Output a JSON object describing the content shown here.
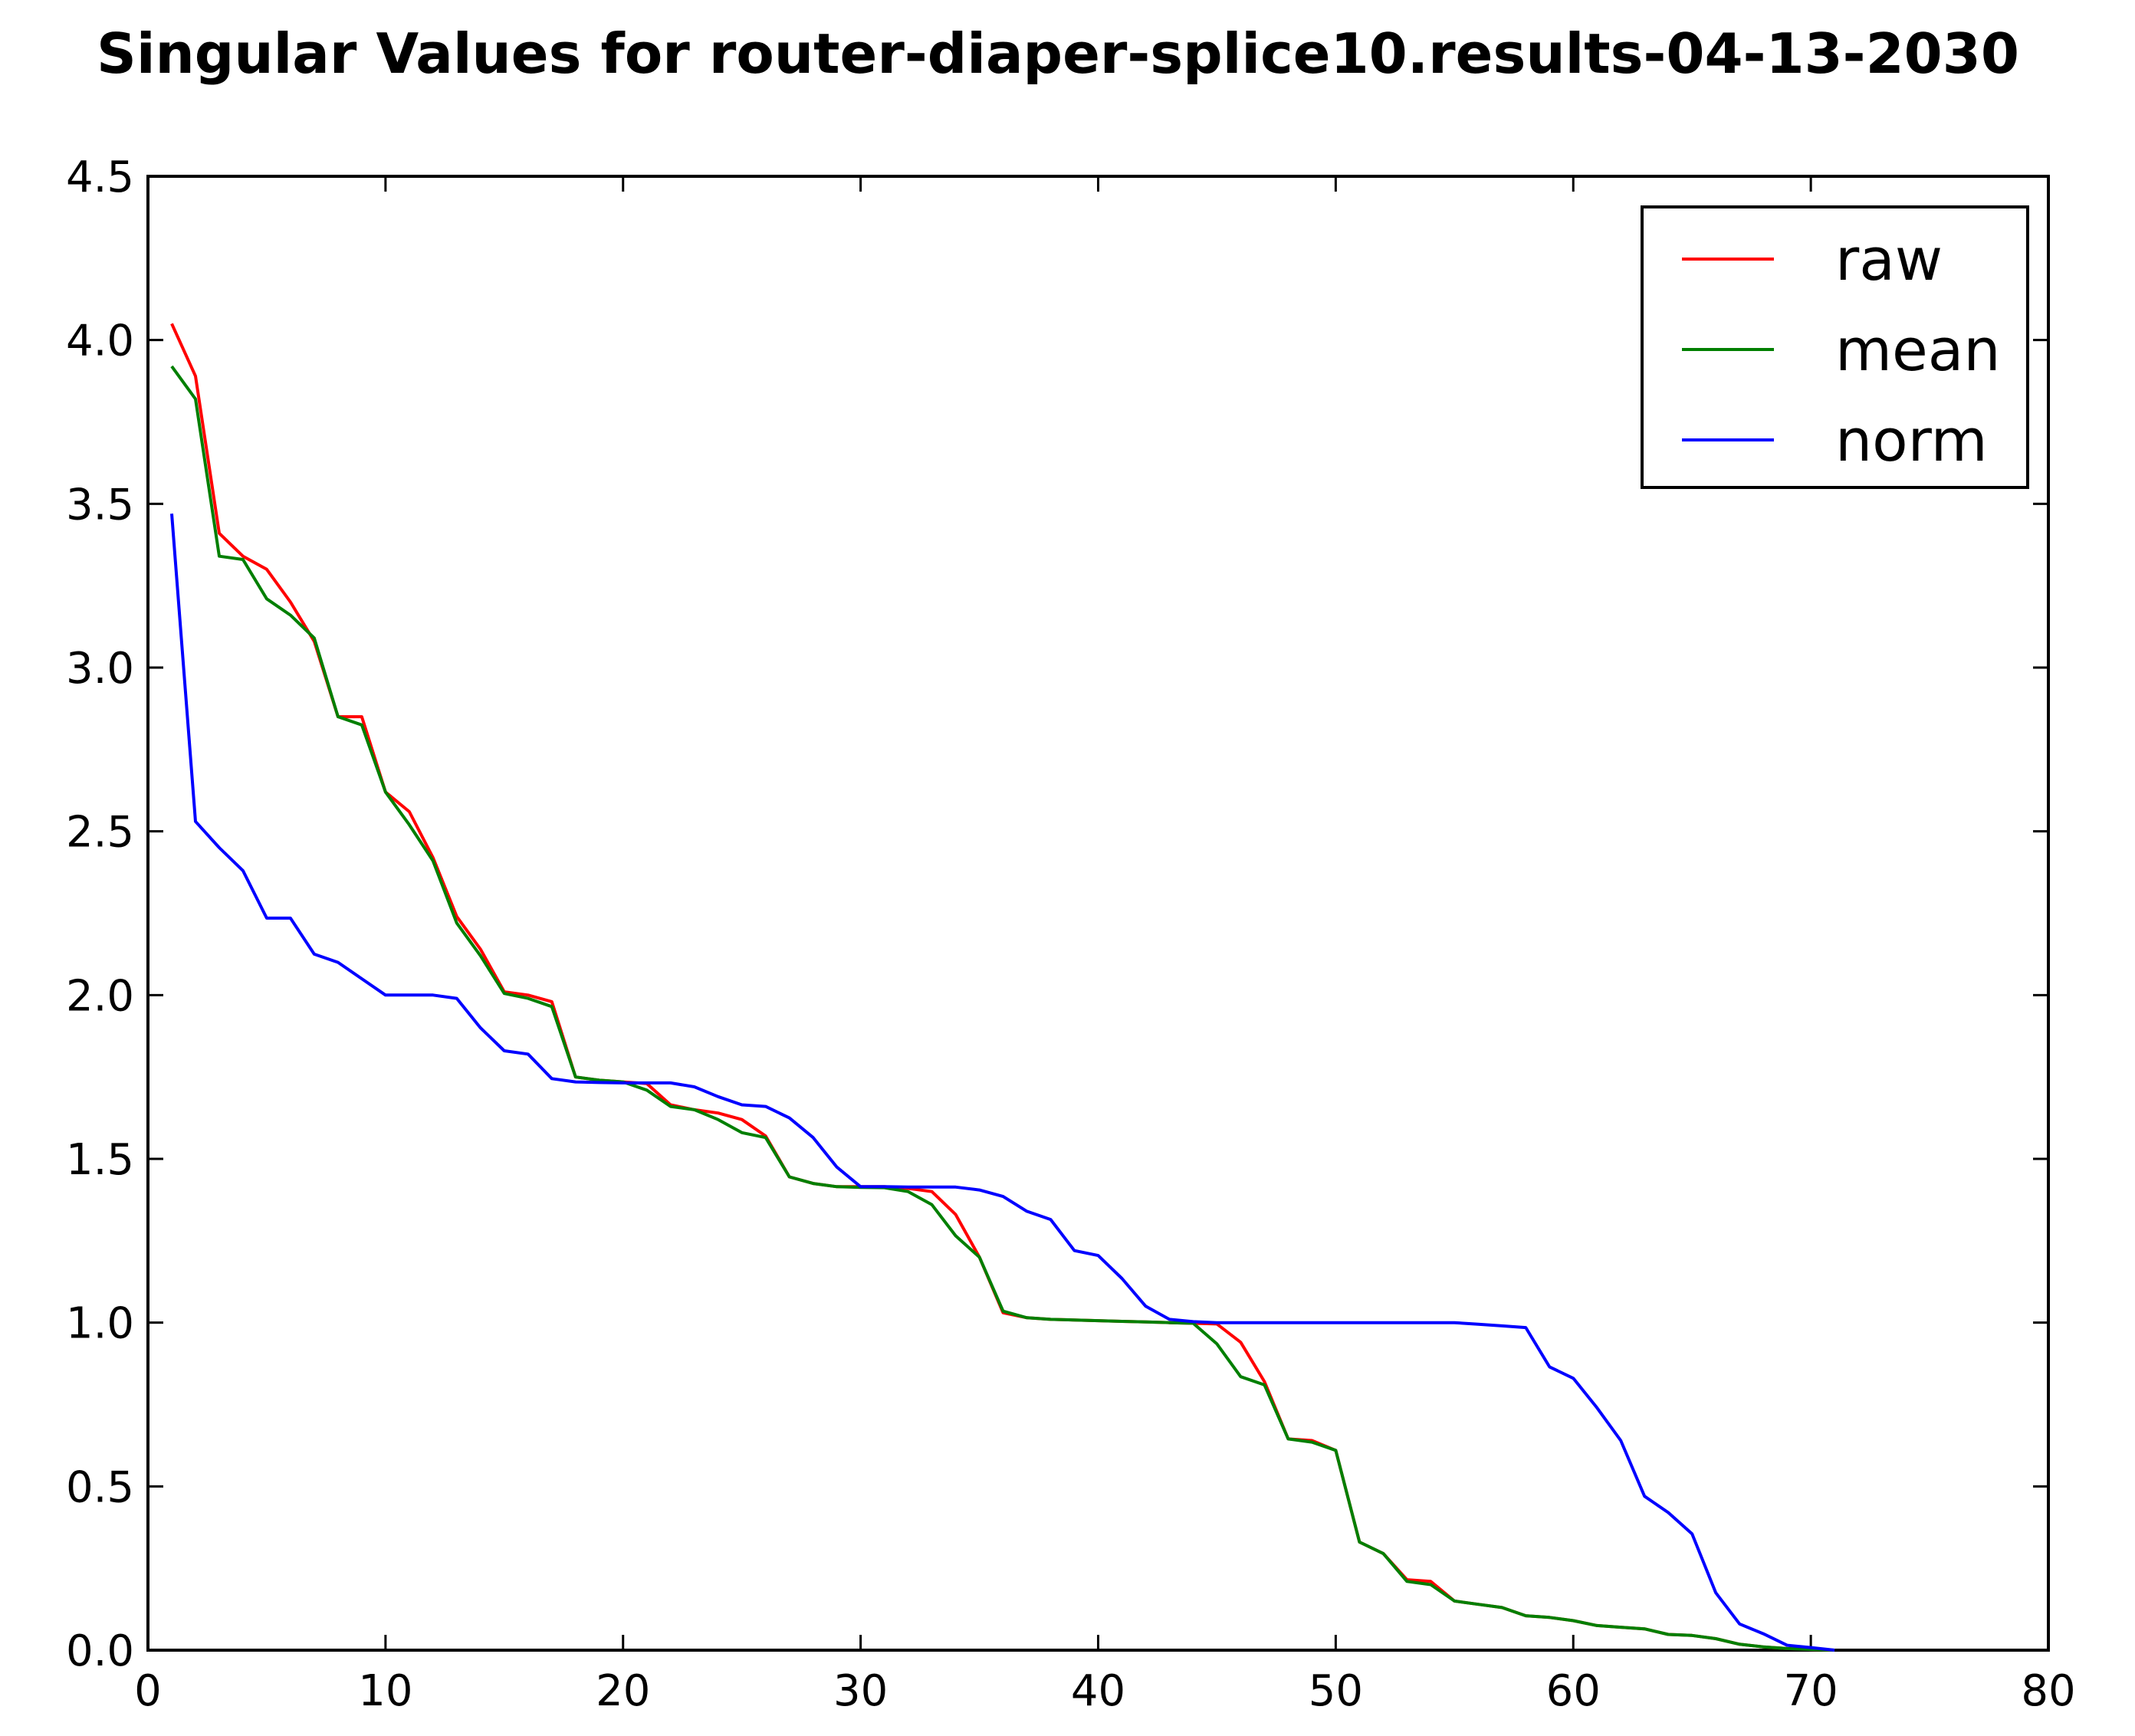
{
  "chart_data": {
    "type": "line",
    "title": "Singular Values for router-diaper-splice10.results-04-13-2030",
    "xlabel": "",
    "ylabel": "",
    "xlim": [
      0,
      80
    ],
    "ylim": [
      0,
      4.5
    ],
    "xticks": [
      0,
      10,
      20,
      30,
      40,
      50,
      60,
      70,
      80
    ],
    "xtick_labels": [
      "0",
      "10",
      "20",
      "30",
      "40",
      "50",
      "60",
      "70",
      "80"
    ],
    "yticks": [
      0,
      0.5,
      1,
      1.5,
      2,
      2.5,
      3,
      3.5,
      4,
      4.5
    ],
    "ytick_labels": [
      "0.0",
      "0.5",
      "1.0",
      "1.5",
      "2.0",
      "2.5",
      "3.0",
      "3.5",
      "4.0",
      "4.5"
    ],
    "grid": false,
    "legend_position": "top-right",
    "x": [
      1,
      2,
      3,
      4,
      5,
      6,
      7,
      8,
      9,
      10,
      11,
      12,
      13,
      14,
      15,
      16,
      17,
      18,
      19,
      20,
      21,
      22,
      23,
      24,
      25,
      26,
      27,
      28,
      29,
      30,
      31,
      32,
      33,
      34,
      35,
      36,
      37,
      38,
      39,
      40,
      41,
      42,
      43,
      44,
      45,
      46,
      47,
      48,
      49,
      50,
      51,
      52,
      53,
      54,
      55,
      56,
      57,
      58,
      59,
      60,
      61,
      62,
      63,
      64,
      65,
      66,
      67,
      68,
      69,
      70,
      71
    ],
    "series": [
      {
        "name": "raw",
        "color": "#ff0000",
        "values": [
          4.05,
          3.89,
          3.41,
          3.34,
          3.3,
          3.2,
          3.08,
          2.85,
          2.85,
          2.62,
          2.56,
          2.42,
          2.24,
          2.14,
          2.01,
          2.0,
          1.98,
          1.75,
          1.74,
          1.735,
          1.73,
          1.665,
          1.65,
          1.64,
          1.62,
          1.57,
          1.445,
          1.425,
          1.415,
          1.415,
          1.415,
          1.41,
          1.4,
          1.33,
          1.2,
          1.03,
          1.015,
          1.01,
          1.008,
          1.006,
          1.004,
          1.002,
          1.0,
          0.998,
          0.996,
          0.94,
          0.82,
          0.645,
          0.64,
          0.61,
          0.33,
          0.295,
          0.215,
          0.21,
          0.15,
          0.14,
          0.13,
          0.105,
          0.1,
          0.09,
          0.075,
          0.07,
          0.065,
          0.048,
          0.045,
          0.035,
          0.018,
          0.01,
          0.005,
          0.002,
          0.0
        ]
      },
      {
        "name": "mean",
        "color": "#007f00",
        "values": [
          3.92,
          3.82,
          3.34,
          3.33,
          3.21,
          3.16,
          3.09,
          2.85,
          2.825,
          2.62,
          2.52,
          2.41,
          2.22,
          2.12,
          2.005,
          1.99,
          1.965,
          1.75,
          1.74,
          1.735,
          1.71,
          1.66,
          1.65,
          1.62,
          1.58,
          1.565,
          1.445,
          1.425,
          1.415,
          1.413,
          1.412,
          1.4,
          1.36,
          1.265,
          1.2,
          1.035,
          1.015,
          1.01,
          1.008,
          1.006,
          1.004,
          1.002,
          1.0,
          0.998,
          0.935,
          0.835,
          0.81,
          0.645,
          0.635,
          0.61,
          0.33,
          0.295,
          0.21,
          0.2,
          0.15,
          0.14,
          0.13,
          0.105,
          0.1,
          0.09,
          0.075,
          0.07,
          0.065,
          0.048,
          0.045,
          0.035,
          0.018,
          0.01,
          0.005,
          0.002,
          0.0
        ]
      },
      {
        "name": "norm",
        "color": "#0000ff",
        "values": [
          3.47,
          2.53,
          2.45,
          2.38,
          2.235,
          2.235,
          2.125,
          2.1,
          2.05,
          2.0,
          2.0,
          2.0,
          1.99,
          1.9,
          1.83,
          1.82,
          1.745,
          1.735,
          1.733,
          1.732,
          1.732,
          1.732,
          1.72,
          1.69,
          1.665,
          1.66,
          1.625,
          1.565,
          1.475,
          1.415,
          1.415,
          1.414,
          1.414,
          1.414,
          1.405,
          1.385,
          1.34,
          1.315,
          1.22,
          1.205,
          1.135,
          1.05,
          1.01,
          1.003,
          1.0,
          1.0,
          1.0,
          1.0,
          1.0,
          1.0,
          1.0,
          1.0,
          1.0,
          1.0,
          1.0,
          0.995,
          0.99,
          0.985,
          0.865,
          0.83,
          0.74,
          0.64,
          0.47,
          0.42,
          0.355,
          0.175,
          0.08,
          0.05,
          0.015,
          0.008,
          0.0
        ]
      }
    ]
  }
}
